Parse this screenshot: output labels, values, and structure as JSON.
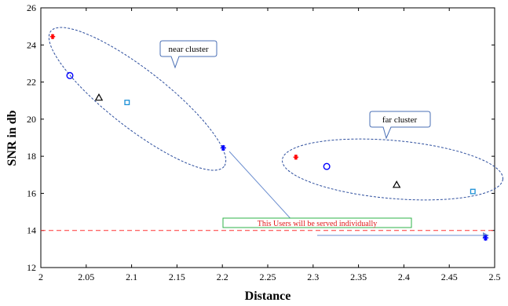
{
  "chart_data": {
    "type": "scatter",
    "title": "",
    "xlabel": "Distance",
    "ylabel": "SNR in db",
    "xlim": [
      2,
      2.5
    ],
    "ylim": [
      12,
      26
    ],
    "xticks": [
      2,
      2.05,
      2.1,
      2.15,
      2.2,
      2.25,
      2.3,
      2.35,
      2.4,
      2.45,
      2.5
    ],
    "xtick_labels": [
      "2",
      "2.05",
      "2.1",
      "2.15",
      "2.2",
      "2.25",
      "2.3",
      "2.35",
      "2.4",
      "2.45",
      "2.5"
    ],
    "yticks": [
      12,
      14,
      16,
      18,
      20,
      22,
      24,
      26
    ],
    "ytick_labels": [
      "12",
      "14",
      "16",
      "18",
      "20",
      "22",
      "24",
      "26"
    ],
    "grid": false,
    "points": [
      {
        "x": 2.013,
        "y": 24.45,
        "marker": "star",
        "color": "#ff0000"
      },
      {
        "x": 2.032,
        "y": 22.35,
        "marker": "circle",
        "color": "#0000ff"
      },
      {
        "x": 2.064,
        "y": 21.15,
        "marker": "triangle",
        "color": "#000000"
      },
      {
        "x": 2.095,
        "y": 20.9,
        "marker": "square",
        "color": "#1a8fd6"
      },
      {
        "x": 2.201,
        "y": 18.45,
        "marker": "asterisk",
        "color": "#0000ff"
      },
      {
        "x": 2.281,
        "y": 17.95,
        "marker": "star",
        "color": "#ff0000"
      },
      {
        "x": 2.315,
        "y": 17.45,
        "marker": "circle",
        "color": "#0000ff"
      },
      {
        "x": 2.392,
        "y": 16.45,
        "marker": "triangle",
        "color": "#000000"
      },
      {
        "x": 2.476,
        "y": 16.1,
        "marker": "square",
        "color": "#1a8fd6"
      },
      {
        "x": 2.49,
        "y": 13.6,
        "marker": "asterisk",
        "color": "#0000ff"
      }
    ],
    "threshold": {
      "y": 14,
      "color": "#ff3333",
      "style": "dashed"
    },
    "annotations": {
      "near_cluster": "near cluster",
      "far_cluster": "far cluster",
      "threshold_note": "This Users will  be served individually"
    },
    "colors": {
      "cluster_outline": "#2e4f9e",
      "callout_border": "#4a6fb5",
      "note_border": "#2fb34a",
      "arrow": "#6d8fd0"
    }
  }
}
